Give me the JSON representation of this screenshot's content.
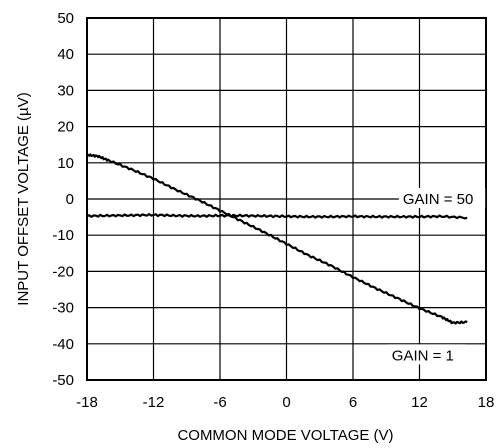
{
  "chart_data": {
    "type": "line",
    "title": "",
    "xlabel": "COMMON MODE VOLTAGE (V)",
    "ylabel": "INPUT OFFSET VOLTAGE (µV)",
    "xlim": [
      -18,
      18
    ],
    "ylim": [
      -50,
      50
    ],
    "xticks": [
      -18,
      -12,
      -6,
      0,
      6,
      12,
      18
    ],
    "yticks": [
      50,
      40,
      30,
      20,
      10,
      0,
      -10,
      -20,
      -30,
      -40,
      -50
    ],
    "grid": true,
    "legend": "none",
    "series": [
      {
        "name": "GAIN = 50",
        "x": [
          -18,
          -16,
          -14,
          -12,
          -10,
          -8,
          -6,
          -4,
          -2,
          0,
          2,
          4,
          6,
          8,
          10,
          12,
          14,
          16.3
        ],
        "y": [
          -4.7,
          -4.6,
          -4.5,
          -4.4,
          -4.6,
          -4.7,
          -4.6,
          -4.6,
          -4.7,
          -4.8,
          -4.9,
          -4.9,
          -4.8,
          -4.9,
          -4.9,
          -4.9,
          -4.8,
          -5.2
        ]
      },
      {
        "name": "GAIN = 1",
        "x": [
          -18,
          -17,
          -16,
          -14,
          -12,
          -10,
          -8,
          -6,
          -4,
          -2,
          0,
          2,
          4,
          6,
          8,
          10,
          12,
          14,
          15,
          16.3
        ],
        "y": [
          12.2,
          11.8,
          10.6,
          8.2,
          5.6,
          2.6,
          -0.2,
          -3.2,
          -6.2,
          -9.2,
          -12.4,
          -15.6,
          -18.4,
          -21.6,
          -24.6,
          -27.4,
          -30.2,
          -32.6,
          -34.2,
          -34.0
        ]
      }
    ],
    "annotations": [
      {
        "text": "GAIN = 50",
        "x": 10.5,
        "y": 0,
        "series": 0
      },
      {
        "text": "GAIN = 1",
        "x": 9.5,
        "y": -43.2,
        "series": 1
      }
    ]
  }
}
